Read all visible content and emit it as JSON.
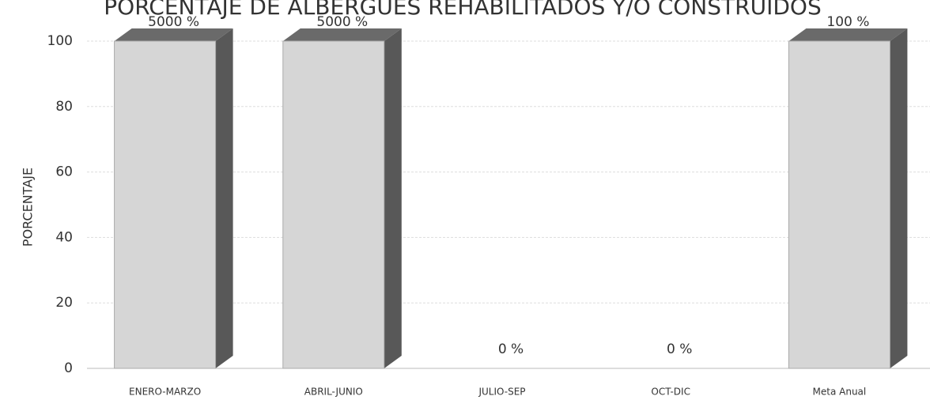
{
  "chart_data": {
    "type": "bar3d",
    "title": "PORCENTAJE DE ALBERGUES REHABILITADOS Y/O CONSTRUIDOS",
    "y_label": "PORCENTAJE",
    "categories": [
      "ENERO-MARZO",
      "ABRIL-JUNIO",
      "JULIO-SEP",
      "OCT-DIC",
      "Meta Anual"
    ],
    "values": [
      5000,
      5000,
      0,
      0,
      100
    ],
    "value_labels": [
      "5000 %",
      "5000 %",
      "0 %",
      "0 %",
      "100 %"
    ],
    "front_color": "#d6d6d6",
    "side_color": "#585858",
    "top_color": "#6a6a6a",
    "ylim": [
      0,
      100
    ],
    "yticks": [
      0,
      20,
      40,
      60,
      80,
      100
    ],
    "grid": true
  }
}
